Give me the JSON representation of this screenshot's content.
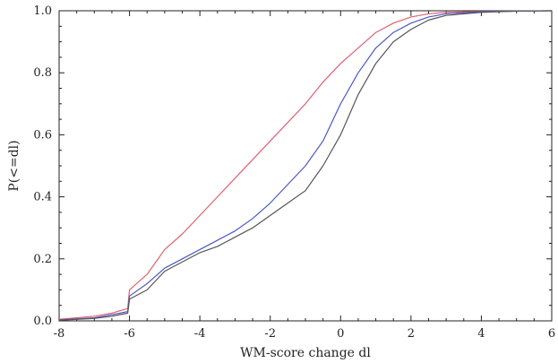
{
  "chart_data": {
    "type": "line",
    "title": "",
    "xlabel": "WM-score change dl",
    "ylabel": "P(<=dl)",
    "xlim": [
      -8,
      6
    ],
    "ylim": [
      0,
      1
    ],
    "xticks": [
      -8,
      -6,
      -4,
      -2,
      0,
      2,
      4,
      6
    ],
    "xtick_labels": [
      "-8",
      "-6",
      "-4",
      "-2",
      "0",
      "2",
      "4",
      "6"
    ],
    "yticks": [
      0,
      0.2,
      0.4,
      0.6,
      0.8,
      1
    ],
    "ytick_labels": [
      "0.0",
      "0.2",
      "0.4",
      "0.6",
      "0.8",
      "1.0"
    ],
    "grid": false,
    "series": [
      {
        "color": "#e06070",
        "x": [
          -8,
          -7,
          -6.5,
          -6.05,
          -6.0,
          -5.5,
          -5.0,
          -4.5,
          -4.0,
          -3.5,
          -3.0,
          -2.5,
          -2.0,
          -1.5,
          -1.0,
          -0.5,
          0.0,
          0.5,
          1.0,
          1.5,
          2.0,
          2.5,
          3.0,
          4.0,
          5.0,
          6.0
        ],
        "y": [
          0.005,
          0.015,
          0.025,
          0.04,
          0.1,
          0.15,
          0.23,
          0.28,
          0.34,
          0.4,
          0.46,
          0.52,
          0.58,
          0.64,
          0.7,
          0.77,
          0.83,
          0.88,
          0.93,
          0.96,
          0.98,
          0.99,
          0.995,
          0.998,
          0.999,
          1.0
        ]
      },
      {
        "color": "#4a58c8",
        "x": [
          -8,
          -7,
          -6.5,
          -6.05,
          -6.0,
          -5.5,
          -5.0,
          -4.5,
          -4.0,
          -3.5,
          -3.0,
          -2.5,
          -2.0,
          -1.5,
          -1.0,
          -0.5,
          0.0,
          0.5,
          1.0,
          1.5,
          2.0,
          2.5,
          3.0,
          4.0,
          5.0,
          6.0
        ],
        "y": [
          0.003,
          0.01,
          0.02,
          0.03,
          0.08,
          0.12,
          0.17,
          0.2,
          0.23,
          0.26,
          0.29,
          0.33,
          0.38,
          0.44,
          0.5,
          0.58,
          0.7,
          0.8,
          0.88,
          0.93,
          0.96,
          0.98,
          0.99,
          0.997,
          0.999,
          1.0
        ]
      },
      {
        "color": "#555555",
        "x": [
          -8,
          -7,
          -6.5,
          -6.05,
          -6.0,
          -5.5,
          -5.0,
          -4.5,
          -4.0,
          -3.5,
          -3.0,
          -2.5,
          -2.0,
          -1.5,
          -1.0,
          -0.5,
          0.0,
          0.5,
          1.0,
          1.5,
          2.0,
          2.5,
          3.0,
          4.0,
          5.0,
          6.0
        ],
        "y": [
          0.002,
          0.008,
          0.015,
          0.025,
          0.07,
          0.1,
          0.16,
          0.19,
          0.22,
          0.24,
          0.27,
          0.3,
          0.34,
          0.38,
          0.42,
          0.5,
          0.6,
          0.73,
          0.83,
          0.9,
          0.94,
          0.97,
          0.985,
          0.995,
          0.999,
          1.0
        ]
      }
    ]
  }
}
